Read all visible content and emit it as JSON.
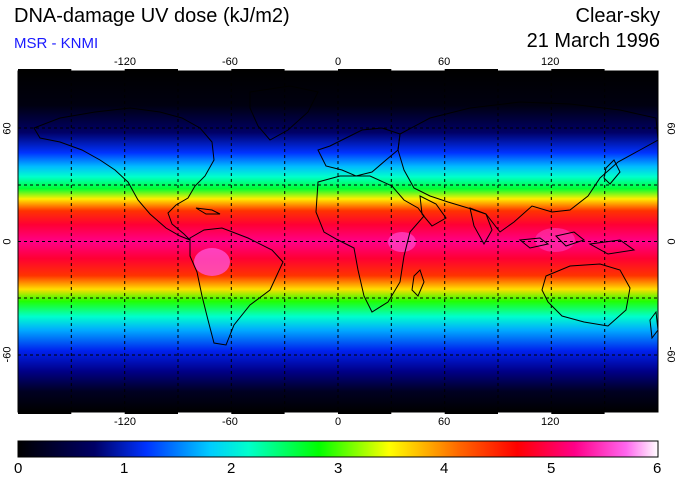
{
  "header": {
    "title": "DNA-damage UV dose (kJ/m2)",
    "subtitle": "MSR - KNMI",
    "condition": "Clear-sky",
    "date": "21 March 1996"
  },
  "map": {
    "projection": "equirectangular",
    "lon_range": [
      -180,
      180
    ],
    "lat_range": [
      -90,
      90
    ],
    "gridlines": "dashed, every 30 degrees",
    "lon_tick_labels": [
      "-120",
      "-60",
      "0",
      "60",
      "120"
    ],
    "lat_tick_labels": [
      "60",
      "0",
      "-60"
    ],
    "coastlines": true
  },
  "colorbar": {
    "min": 0,
    "max": 6,
    "tick_labels": [
      "0",
      "1",
      "2",
      "3",
      "4",
      "5",
      "6"
    ],
    "colors": [
      "#000000",
      "#0000cc",
      "#00ffff",
      "#00ff00",
      "#ffff00",
      "#ff0000",
      "#ff00cc",
      "#ffffff"
    ]
  },
  "colors": {
    "subtitle": "#1a1aff",
    "background": "#ffffff",
    "frame": "#000000"
  }
}
